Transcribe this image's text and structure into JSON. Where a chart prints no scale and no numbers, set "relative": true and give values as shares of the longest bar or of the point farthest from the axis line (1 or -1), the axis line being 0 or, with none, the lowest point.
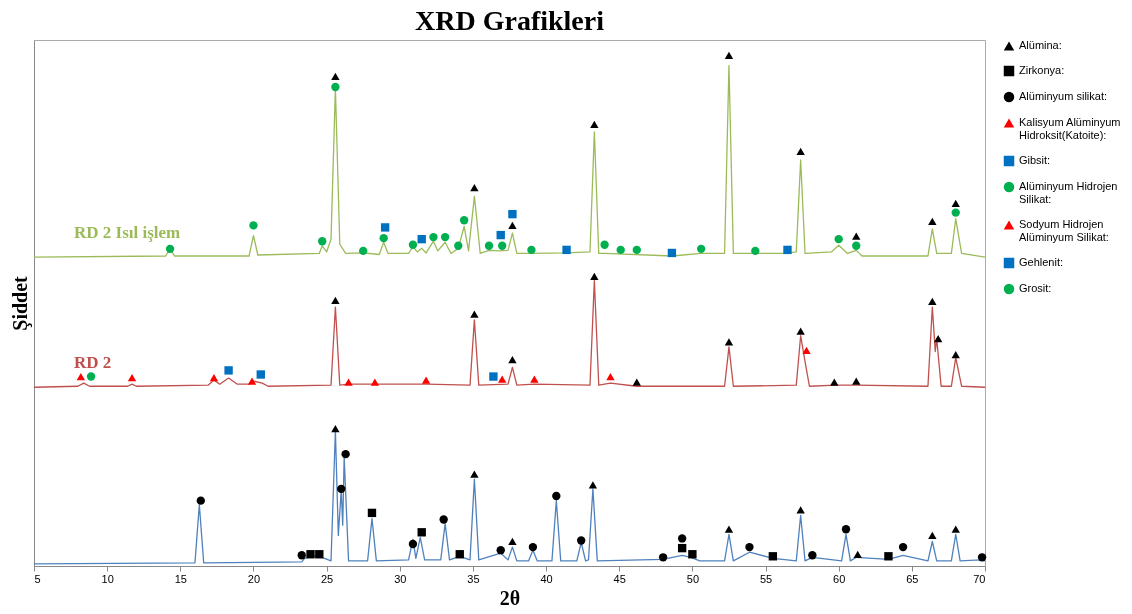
{
  "chart_data": {
    "type": "line",
    "title": "XRD Grafikleri",
    "xlabel": "2θ",
    "ylabel": "Şiddet",
    "relative": true,
    "xlim": [
      5,
      70
    ],
    "xticks": [
      5,
      10,
      15,
      20,
      25,
      30,
      35,
      40,
      45,
      50,
      55,
      60,
      65,
      70
    ],
    "legend": "right",
    "marker": "none",
    "line_style": "solid",
    "series": [
      {
        "name": "RD 2 Isıl işlem",
        "color": "#9bbb59",
        "x": [
          5,
          14.0,
          14.3,
          14.6,
          19.7,
          20.0,
          20.3,
          24.5,
          24.7,
          25.0,
          25.3,
          25.6,
          25.9,
          26.3,
          27.5,
          28.6,
          28.9,
          29.2,
          30.6,
          30.9,
          31.2,
          31.5,
          31.8,
          32.3,
          32.6,
          33.1,
          33.5,
          34.0,
          34.4,
          34.7,
          35.1,
          35.5,
          36.1,
          36.8,
          37.4,
          37.7,
          38.0,
          39.0,
          41.4,
          43.0,
          43.3,
          43.6,
          44.0,
          48.6,
          50.6,
          52.2,
          52.5,
          52.8,
          56.3,
          57.1,
          57.4,
          57.7,
          59.5,
          60.0,
          60.6,
          61.2,
          61.6,
          66.1,
          66.4,
          66.7,
          67.7,
          68.0,
          68.4,
          70
        ],
        "values": [
          0.605,
          0.607,
          0.622,
          0.607,
          0.607,
          0.647,
          0.609,
          0.612,
          0.627,
          0.615,
          0.64,
          0.935,
          0.63,
          0.612,
          0.613,
          0.61,
          0.634,
          0.612,
          0.612,
          0.625,
          0.615,
          0.622,
          0.613,
          0.636,
          0.617,
          0.634,
          0.612,
          0.622,
          0.665,
          0.617,
          0.724,
          0.612,
          0.618,
          0.617,
          0.618,
          0.652,
          0.612,
          0.612,
          0.613,
          0.615,
          0.85,
          0.612,
          0.612,
          0.607,
          0.612,
          0.612,
          0.98,
          0.612,
          0.612,
          0.615,
          0.795,
          0.612,
          0.615,
          0.628,
          0.612,
          0.618,
          0.607,
          0.607,
          0.66,
          0.612,
          0.612,
          0.68,
          0.612,
          0.605
        ]
      },
      {
        "name": "RD 2",
        "color": "#c0504d",
        "x": [
          5,
          8.0,
          8.4,
          8.8,
          11.4,
          11.7,
          12.0,
          16.9,
          17.3,
          17.7,
          18.3,
          18.9,
          19.7,
          20.0,
          20.6,
          21.0,
          25.3,
          25.6,
          25.9,
          26.5,
          31.8,
          34.8,
          35.1,
          35.4,
          37.4,
          37.7,
          38.0,
          39.2,
          43.0,
          43.3,
          43.6,
          44.4,
          46.2,
          52.2,
          52.5,
          52.8,
          57.1,
          57.4,
          57.7,
          58.0,
          59.8,
          61.2,
          66.1,
          66.4,
          66.6,
          66.7,
          67.0,
          67.7,
          68.0,
          68.4,
          70
        ],
        "values": [
          0.35,
          0.352,
          0.358,
          0.352,
          0.352,
          0.356,
          0.352,
          0.354,
          0.364,
          0.356,
          0.368,
          0.356,
          0.356,
          0.362,
          0.358,
          0.352,
          0.354,
          0.507,
          0.354,
          0.356,
          0.356,
          0.354,
          0.482,
          0.354,
          0.356,
          0.389,
          0.354,
          0.356,
          0.354,
          0.559,
          0.354,
          0.358,
          0.352,
          0.352,
          0.429,
          0.352,
          0.354,
          0.451,
          0.4,
          0.352,
          0.354,
          0.354,
          0.352,
          0.507,
          0.42,
          0.445,
          0.352,
          0.352,
          0.408,
          0.352,
          0.35
        ]
      },
      {
        "color": "#4f81bd",
        "x": [
          5,
          16.0,
          16.3,
          16.6,
          23.3,
          23.5,
          24.0,
          24.5,
          25.3,
          25.6,
          25.8,
          26.0,
          26.1,
          26.2,
          26.5,
          27.8,
          28.1,
          28.4,
          30.6,
          30.9,
          31.1,
          31.4,
          31.7,
          32.8,
          33.1,
          33.4,
          34.1,
          34.8,
          35.1,
          35.4,
          36.9,
          37.4,
          37.7,
          38.0,
          38.8,
          39.1,
          39.4,
          40.4,
          40.7,
          41.0,
          42.1,
          42.4,
          42.7,
          42.9,
          43.2,
          43.5,
          48.0,
          49.3,
          49.9,
          50.5,
          52.2,
          52.5,
          52.8,
          53.9,
          55.5,
          57.1,
          57.4,
          57.7,
          58.2,
          60.2,
          60.5,
          60.8,
          61.2,
          63.4,
          64.4,
          66.1,
          66.4,
          66.7,
          67.7,
          68.0,
          68.3,
          69.7,
          70
        ],
        "values": [
          0.004,
          0.006,
          0.12,
          0.006,
          0.008,
          0.015,
          0.019,
          0.019,
          0.01,
          0.265,
          0.06,
          0.149,
          0.08,
          0.213,
          0.01,
          0.01,
          0.093,
          0.01,
          0.012,
          0.052,
          0.015,
          0.056,
          0.012,
          0.012,
          0.083,
          0.012,
          0.019,
          0.012,
          0.17,
          0.012,
          0.025,
          0.012,
          0.037,
          0.01,
          0.01,
          0.031,
          0.01,
          0.01,
          0.128,
          0.01,
          0.01,
          0.046,
          0.01,
          0.012,
          0.151,
          0.01,
          0.013,
          0.021,
          0.017,
          0.01,
          0.01,
          0.062,
          0.01,
          0.027,
          0.015,
          0.01,
          0.099,
          0.01,
          0.017,
          0.01,
          0.062,
          0.01,
          0.017,
          0.013,
          0.021,
          0.01,
          0.048,
          0.01,
          0.01,
          0.062,
          0.01,
          0.012,
          0.01
        ]
      },
      {
        "name": "Alümina:",
        "type": "scatter",
        "marker": "triangle",
        "color": "#000000",
        "x": [
          25.6,
          35.1,
          37.7,
          43.3,
          52.5,
          57.4,
          61.2,
          66.4,
          68.0,
          25.6,
          35.1,
          37.7,
          43.3,
          46.2,
          52.5,
          57.4,
          59.7,
          61.2,
          66.4,
          66.8,
          68.0,
          25.6,
          35.1,
          37.7,
          43.2,
          52.5,
          57.4,
          61.3,
          66.4,
          68.0
        ],
        "values": [
          0.959,
          0.741,
          0.667,
          0.865,
          1,
          0.812,
          0.646,
          0.675,
          0.71,
          0.52,
          0.493,
          0.404,
          0.567,
          0.36,
          0.439,
          0.46,
          0.36,
          0.362,
          0.518,
          0.445,
          0.414,
          0.269,
          0.18,
          0.048,
          0.159,
          0.072,
          0.11,
          0.023,
          0.06,
          0.072
        ]
      },
      {
        "name": "Zirkonya:",
        "type": "scatter",
        "marker": "square",
        "color": "#000000",
        "x": [
          23.9,
          24.5,
          28.1,
          31.5,
          34.1,
          49.3,
          50.0,
          55.5,
          63.4
        ],
        "values": [
          0.023,
          0.023,
          0.104,
          0.066,
          0.023,
          0.035,
          0.023,
          0.019,
          0.019
        ]
      },
      {
        "name": "Alüminyum silikat:",
        "type": "scatter",
        "marker": "circle",
        "color": "#000000",
        "x": [
          16.4,
          23.3,
          26.0,
          26.3,
          30.9,
          33.0,
          36.9,
          39.1,
          40.7,
          42.4,
          48.0,
          49.3,
          53.9,
          58.2,
          60.5,
          64.4,
          69.8
        ],
        "values": [
          0.128,
          0.021,
          0.151,
          0.219,
          0.043,
          0.091,
          0.031,
          0.037,
          0.137,
          0.05,
          0.017,
          0.054,
          0.037,
          0.021,
          0.072,
          0.037,
          0.017
        ]
      },
      {
        "name": "Kalisyum Alüminyum Hidroksit(Katoite):",
        "type": "scatter",
        "marker": "triangle",
        "color": "#ff0000",
        "x": [
          17.3,
          19.9,
          26.5,
          28.3,
          31.8,
          37.0,
          39.2,
          44.4,
          57.8
        ],
        "values": [
          0.369,
          0.362,
          0.36,
          0.36,
          0.364,
          0.366,
          0.366,
          0.371,
          0.422
        ]
      },
      {
        "name": "Gibsit:",
        "type": "scatter",
        "marker": "square",
        "color": "#0070c0",
        "x": [
          18.3,
          20.5,
          36.4
        ],
        "values": [
          0.383,
          0.375,
          0.371
        ]
      },
      {
        "name": "Alüminyum Hidrojen Silikat:",
        "type": "scatter",
        "marker": "circle",
        "color": "#00b050",
        "x": [
          8.9
        ],
        "values": [
          0.371
        ]
      },
      {
        "name": "Sodyum Hidrojen Alüminyum Silikat:",
        "type": "scatter",
        "marker": "triangle",
        "color": "#ff0000",
        "x": [
          8.2,
          11.7
        ],
        "values": [
          0.371,
          0.369
        ]
      },
      {
        "name": "Gehlenit:",
        "type": "scatter",
        "marker": "square",
        "color": "#0070c0",
        "x": [
          29.0,
          31.5,
          36.9,
          37.7,
          41.4,
          48.6,
          56.5
        ],
        "values": [
          0.663,
          0.64,
          0.648,
          0.689,
          0.619,
          0.613,
          0.619
        ]
      },
      {
        "name": "Grosit:",
        "type": "scatter",
        "marker": "circle",
        "color": "#00b050",
        "x": [
          14.3,
          20.0,
          24.7,
          25.6,
          27.5,
          28.9,
          30.9,
          32.3,
          33.1,
          34.0,
          34.4,
          36.1,
          37.0,
          39.0,
          44.0,
          45.1,
          46.2,
          50.6,
          54.3,
          60.0,
          61.2,
          68.0
        ],
        "values": [
          0.621,
          0.667,
          0.636,
          0.938,
          0.617,
          0.642,
          0.629,
          0.644,
          0.644,
          0.627,
          0.677,
          0.627,
          0.627,
          0.619,
          0.629,
          0.619,
          0.619,
          0.621,
          0.617,
          0.64,
          0.627,
          0.692
        ]
      }
    ]
  }
}
